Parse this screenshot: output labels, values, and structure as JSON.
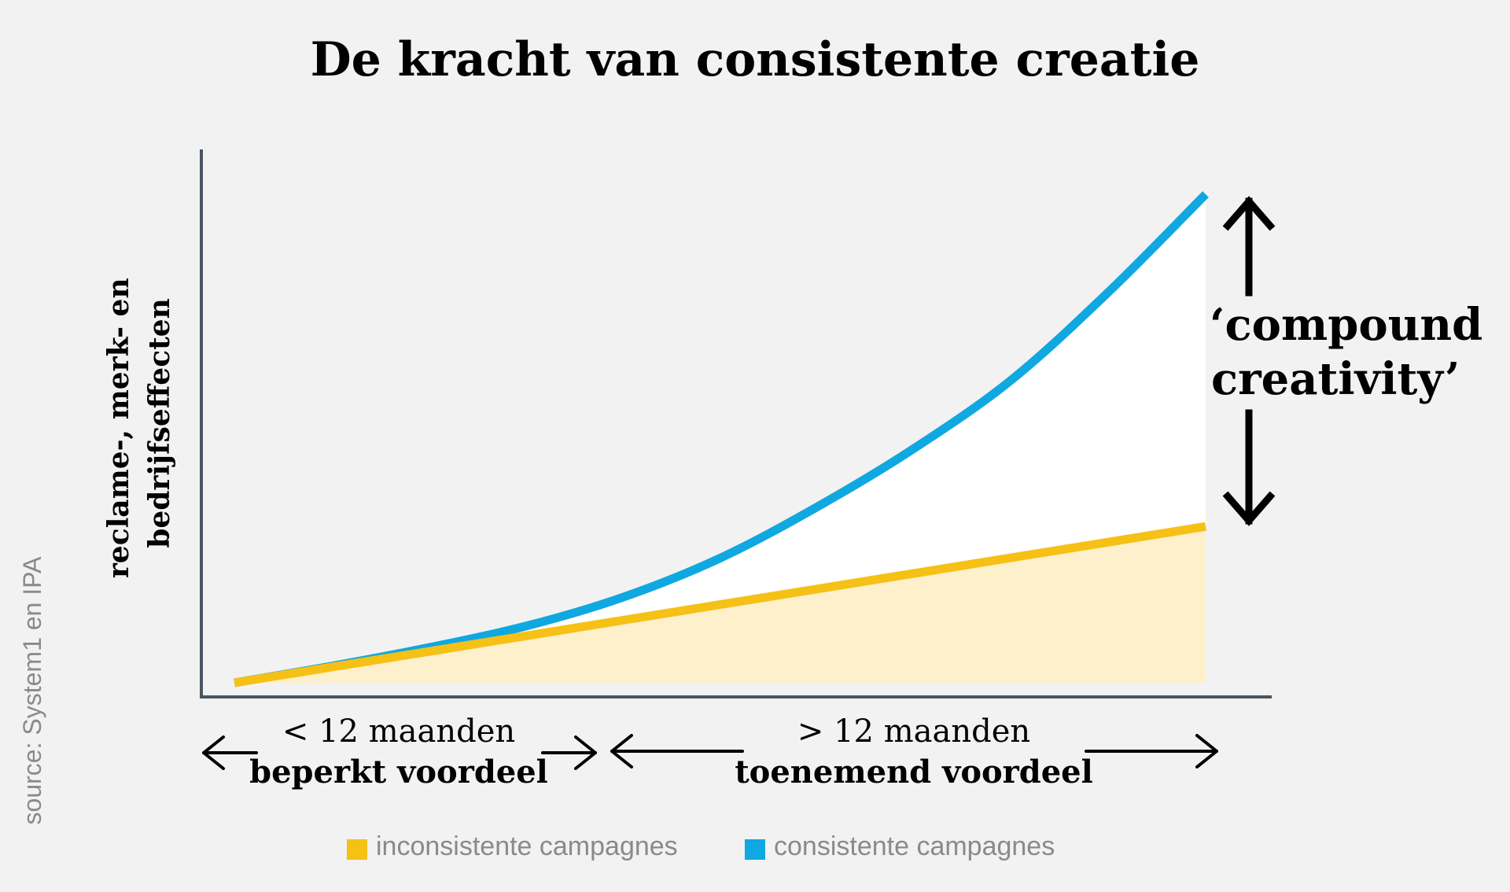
{
  "title": "De kracht van consistente creatie",
  "source": "source: System1 en IPA",
  "chart_data": {
    "type": "area",
    "title": "De kracht van consistente creatie",
    "ylabel_lines": [
      "reclame-, merk- en",
      "bedrijfseffecten"
    ],
    "xlabel": "",
    "xlim": [
      0,
      1
    ],
    "ylim": [
      0,
      1
    ],
    "grid": false,
    "legend_position": "bottom-center",
    "series": [
      {
        "name": "inconsistente campagnes",
        "color": "#f5c116",
        "fill": "#fdf0cb",
        "x": [
          0,
          0.1,
          0.2,
          0.3,
          0.4,
          0.5,
          0.6,
          0.7,
          0.8,
          0.9,
          1.0
        ],
        "y": [
          0,
          0.032,
          0.064,
          0.096,
          0.128,
          0.16,
          0.192,
          0.224,
          0.256,
          0.288,
          0.32
        ]
      },
      {
        "name": "consistente campagnes",
        "color": "#0fa8e0",
        "fill": "#ffffff",
        "x": [
          0,
          0.1,
          0.2,
          0.3,
          0.4,
          0.5,
          0.6,
          0.7,
          0.8,
          0.9,
          1.0
        ],
        "y": [
          0,
          0.034,
          0.072,
          0.116,
          0.175,
          0.255,
          0.36,
          0.48,
          0.62,
          0.8,
          1.0
        ]
      }
    ],
    "annotations": {
      "compound_lines": [
        "‘compound",
        "creativity’"
      ],
      "period_short": {
        "line1": "< 12 maanden",
        "line2": "beperkt voordeel"
      },
      "period_long": {
        "line1": "> 12 maanden",
        "line2": "toenemend voordeel"
      }
    }
  },
  "colors": {
    "background": "#f2f2f2",
    "axis": "#4a5562",
    "arrow": "#000000",
    "source_text": "#8a8a8a"
  }
}
